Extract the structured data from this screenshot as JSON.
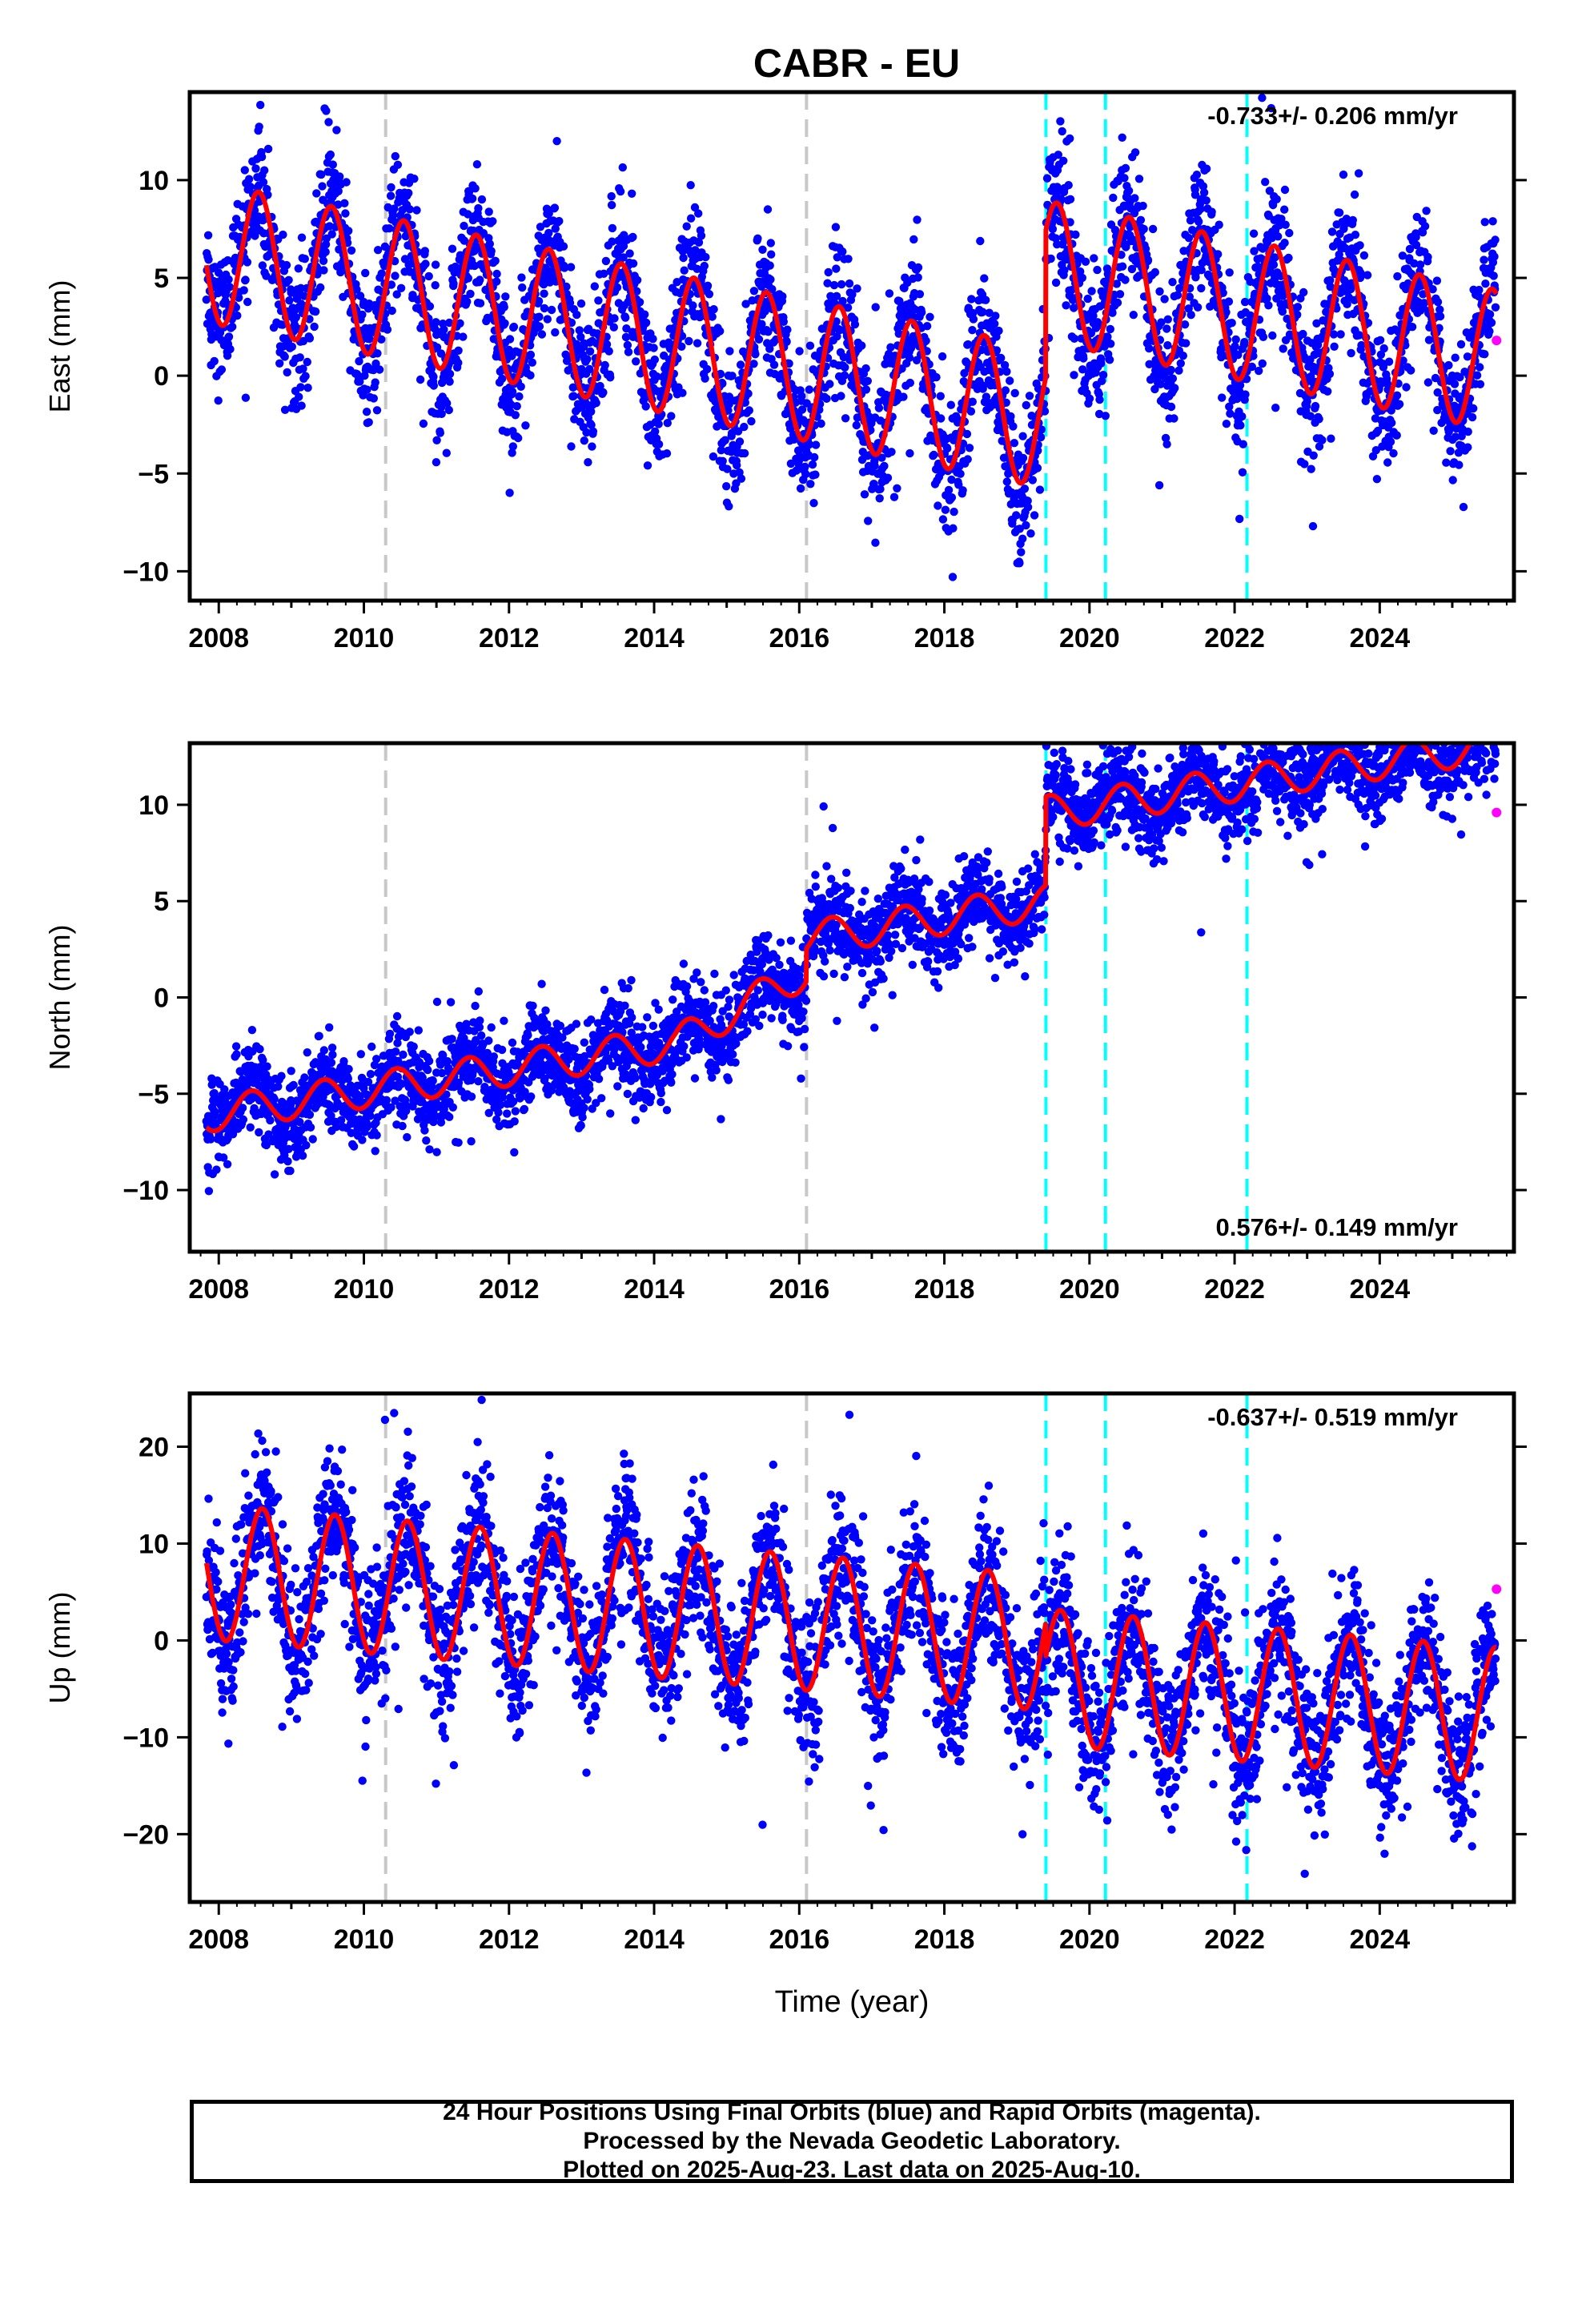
{
  "title": "CABR - EU",
  "xlabel": "Time (year)",
  "colors": {
    "final_orbits": "#0000ff",
    "rapid_orbits": "#ff00ff",
    "model": "#ff0000",
    "equipment_change": "#c8c8c8",
    "earthquake": "#00ffff"
  },
  "caption": {
    "line1": "24 Hour Positions Using Final Orbits (blue) and Rapid Orbits (magenta).",
    "line2": "Processed by the Nevada Geodetic Laboratory.",
    "line3": "Plotted on 2025-Aug-23. Last data on 2025-Aug-10."
  },
  "chart_data": [
    {
      "type": "scatter",
      "ylabel": "East (mm)",
      "rate_label": "-0.733+/- 0.206 mm/yr",
      "rate_position": "top-right",
      "xlim": [
        2007.6,
        2025.85
      ],
      "ylim": [
        -11.5,
        14.5
      ],
      "x_ticks": [
        2008,
        2010,
        2012,
        2014,
        2016,
        2018,
        2020,
        2022,
        2024
      ],
      "y_ticks": [
        -10,
        -5,
        0,
        5,
        10
      ],
      "grey_lines": [
        2010.3,
        2016.1
      ],
      "cyan_lines": [
        2019.4,
        2020.22,
        2022.17
      ],
      "model": {
        "rate_mm_per_yr": -0.733,
        "reference_epoch": 2008.0,
        "offset_mm": 6.2,
        "annual_amplitude_mm": 3.6,
        "annual_peak_phase_yr": 0.55,
        "steps": [
          {
            "epoch": 2019.4,
            "size_mm": 7.5
          }
        ],
        "noise_sd_mm": 1.7
      },
      "rapid_point": {
        "x": 2025.61,
        "y": 1.8
      }
    },
    {
      "type": "scatter",
      "ylabel": "North (mm)",
      "rate_label": "0.576+/- 0.149 mm/yr",
      "rate_position": "bottom-right",
      "xlim": [
        2007.6,
        2025.85
      ],
      "ylim": [
        -13.2,
        13.2
      ],
      "x_ticks": [
        2008,
        2010,
        2012,
        2014,
        2016,
        2018,
        2020,
        2022,
        2024
      ],
      "y_ticks": [
        -10,
        -5,
        0,
        5,
        10
      ],
      "grey_lines": [
        2010.3,
        2016.1
      ],
      "cyan_lines": [
        2019.4,
        2020.22,
        2022.17
      ],
      "model": {
        "rate_mm_per_yr": 0.576,
        "reference_epoch": 2008.0,
        "offset_mm": -6.0,
        "annual_amplitude_mm": 0.9,
        "annual_peak_phase_yr": 0.45,
        "ramp": {
          "start": 2014.3,
          "end": 2016.1,
          "total_mm": 2.7
        },
        "steps": [
          {
            "epoch": 2016.1,
            "size_mm": 1.7
          },
          {
            "epoch": 2019.4,
            "size_mm": 4.6
          }
        ],
        "noise_sd_mm": 1.1
      },
      "rapid_point": {
        "x": 2025.61,
        "y": 9.6
      }
    },
    {
      "type": "scatter",
      "ylabel": "Up (mm)",
      "rate_label": "-0.637+/- 0.519 mm/yr",
      "rate_position": "top-right",
      "xlim": [
        2007.6,
        2025.85
      ],
      "ylim": [
        -27,
        25.5
      ],
      "x_ticks": [
        2008,
        2010,
        2012,
        2014,
        2016,
        2018,
        2020,
        2022,
        2024
      ],
      "y_ticks": [
        -20,
        -10,
        0,
        10,
        20
      ],
      "grey_lines": [
        2010.3,
        2016.1
      ],
      "cyan_lines": [
        2019.4,
        2020.22,
        2022.17
      ],
      "model": {
        "rate_mm_per_yr": -0.637,
        "reference_epoch": 2008.0,
        "offset_mm": 7.0,
        "annual_amplitude_mm": 7.0,
        "annual_peak_phase_yr": 0.6,
        "steps": [
          {
            "epoch": 2019.4,
            "size_mm": -3.5
          }
        ],
        "noise_sd_mm": 3.6
      },
      "rapid_point": {
        "x": 2025.61,
        "y": 5.3
      }
    }
  ]
}
